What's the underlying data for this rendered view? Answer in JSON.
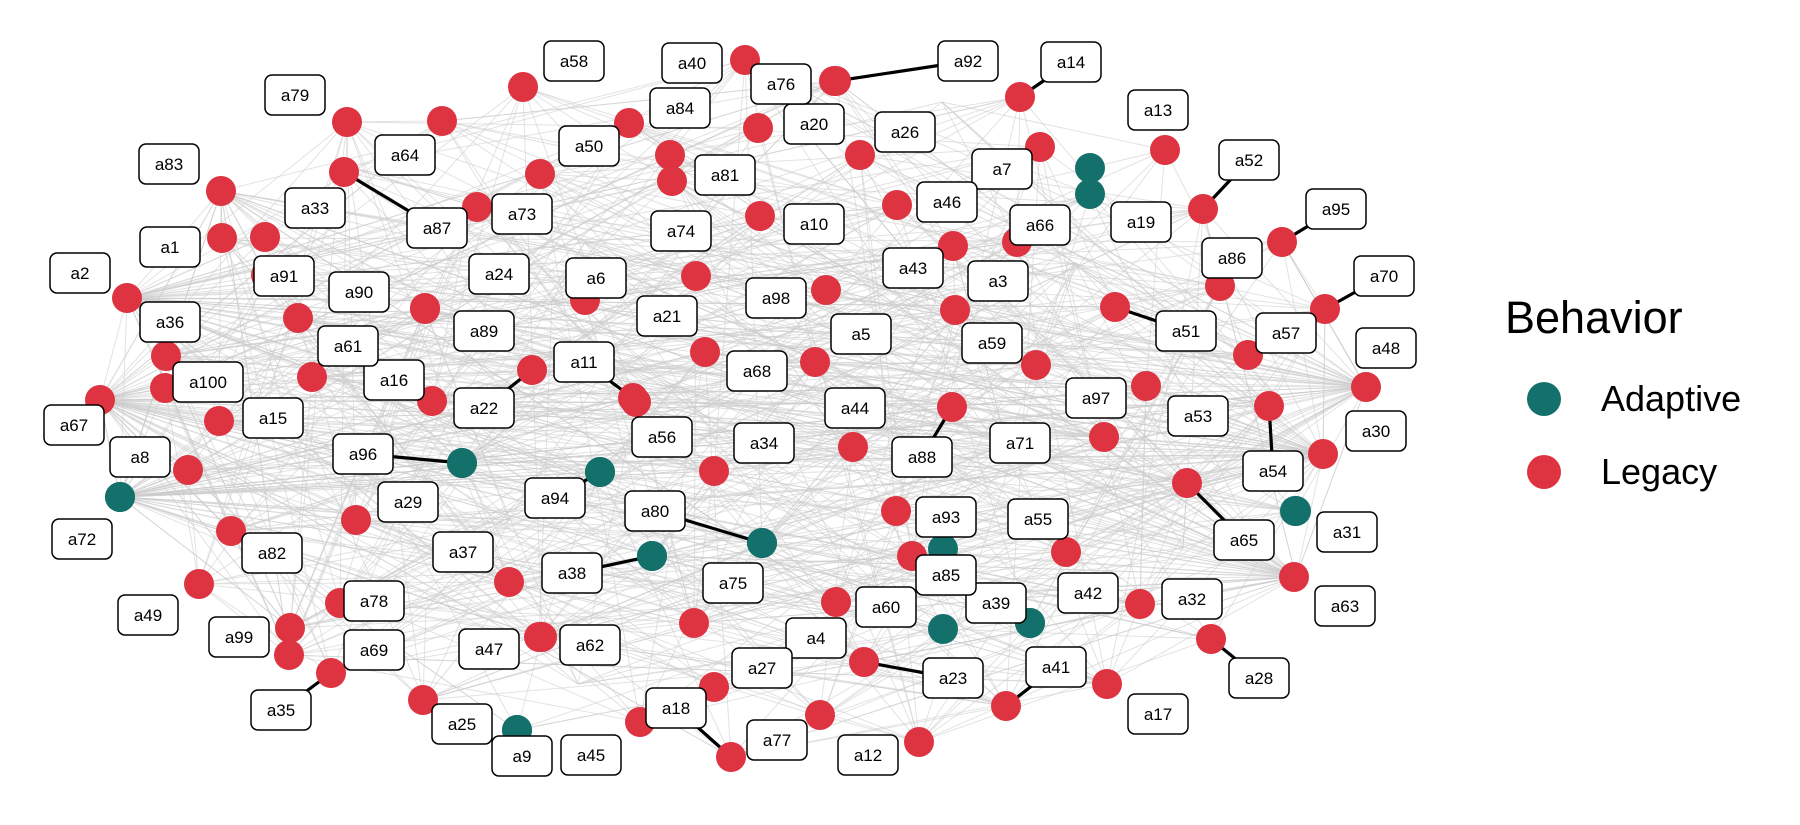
{
  "legend": {
    "title": "Behavior",
    "items": [
      {
        "label": "Adaptive",
        "color": "#13706b"
      },
      {
        "label": "Legacy",
        "color": "#de3341"
      }
    ]
  },
  "colors": {
    "edge": "#cccccc",
    "adaptive": "#13706b",
    "legacy": "#de3341"
  },
  "nodes": [
    {
      "label": "a1",
      "type": "Legacy"
    },
    {
      "label": "a2",
      "type": "Legacy"
    },
    {
      "label": "a3",
      "type": "Legacy"
    },
    {
      "label": "a4",
      "type": "Legacy"
    },
    {
      "label": "a5",
      "type": "Legacy"
    },
    {
      "label": "a6",
      "type": "Legacy"
    },
    {
      "label": "a7",
      "type": "Legacy"
    },
    {
      "label": "a8",
      "type": "Legacy"
    },
    {
      "label": "a9",
      "type": "Adaptive"
    },
    {
      "label": "a10",
      "type": "Legacy"
    },
    {
      "label": "a11",
      "type": "Legacy"
    },
    {
      "label": "a12",
      "type": "Legacy"
    },
    {
      "label": "a13",
      "type": "Legacy"
    },
    {
      "label": "a14",
      "type": "Legacy"
    },
    {
      "label": "a15",
      "type": "Legacy"
    },
    {
      "label": "a16",
      "type": "Legacy"
    },
    {
      "label": "a17",
      "type": "Legacy"
    },
    {
      "label": "a18",
      "type": "Legacy"
    },
    {
      "label": "a19",
      "type": "Adaptive"
    },
    {
      "label": "a20",
      "type": "Legacy"
    },
    {
      "label": "a21",
      "type": "Legacy"
    },
    {
      "label": "a22",
      "type": "Legacy"
    },
    {
      "label": "a23",
      "type": "Legacy"
    },
    {
      "label": "a24",
      "type": "Legacy"
    },
    {
      "label": "a25",
      "type": "Legacy"
    },
    {
      "label": "a26",
      "type": "Legacy"
    },
    {
      "label": "a27",
      "type": "Legacy"
    },
    {
      "label": "a28",
      "type": "Legacy"
    },
    {
      "label": "a29",
      "type": "Legacy"
    },
    {
      "label": "a30",
      "type": "Legacy"
    },
    {
      "label": "a31",
      "type": "Adaptive"
    },
    {
      "label": "a32",
      "type": "Legacy"
    },
    {
      "label": "a33",
      "type": "Legacy"
    },
    {
      "label": "a34",
      "type": "Legacy"
    },
    {
      "label": "a35",
      "type": "Legacy"
    },
    {
      "label": "a36",
      "type": "Legacy"
    },
    {
      "label": "a37",
      "type": "Legacy"
    },
    {
      "label": "a38",
      "type": "Adaptive"
    },
    {
      "label": "a39",
      "type": "Adaptive"
    },
    {
      "label": "a40",
      "type": "Legacy"
    },
    {
      "label": "a41",
      "type": "Legacy"
    },
    {
      "label": "a42",
      "type": "Legacy"
    },
    {
      "label": "a43",
      "type": "Legacy"
    },
    {
      "label": "a44",
      "type": "Legacy"
    },
    {
      "label": "a45",
      "type": "Legacy"
    },
    {
      "label": "a46",
      "type": "Legacy"
    },
    {
      "label": "a47",
      "type": "Legacy"
    },
    {
      "label": "a48",
      "type": "Legacy"
    },
    {
      "label": "a49",
      "type": "Legacy"
    },
    {
      "label": "a50",
      "type": "Legacy"
    },
    {
      "label": "a51",
      "type": "Legacy"
    },
    {
      "label": "a52",
      "type": "Legacy"
    },
    {
      "label": "a53",
      "type": "Legacy"
    },
    {
      "label": "a54",
      "type": "Legacy"
    },
    {
      "label": "a55",
      "type": "Legacy"
    },
    {
      "label": "a56",
      "type": "Legacy"
    },
    {
      "label": "a57",
      "type": "Legacy"
    },
    {
      "label": "a58",
      "type": "Legacy"
    },
    {
      "label": "a59",
      "type": "Legacy"
    },
    {
      "label": "a60",
      "type": "Adaptive"
    },
    {
      "label": "a61",
      "type": "Legacy"
    },
    {
      "label": "a62",
      "type": "Legacy"
    },
    {
      "label": "a63",
      "type": "Legacy"
    },
    {
      "label": "a64",
      "type": "Legacy"
    },
    {
      "label": "a65",
      "type": "Legacy"
    },
    {
      "label": "a66",
      "type": "Legacy"
    },
    {
      "label": "a67",
      "type": "Legacy"
    },
    {
      "label": "a68",
      "type": "Legacy"
    },
    {
      "label": "a69",
      "type": "Legacy"
    },
    {
      "label": "a70",
      "type": "Legacy"
    },
    {
      "label": "a71",
      "type": "Legacy"
    },
    {
      "label": "a72",
      "type": "Adaptive"
    },
    {
      "label": "a73",
      "type": "Legacy"
    },
    {
      "label": "a74",
      "type": "Legacy"
    },
    {
      "label": "a75",
      "type": "Legacy"
    },
    {
      "label": "a76",
      "type": "Legacy"
    },
    {
      "label": "a77",
      "type": "Legacy"
    },
    {
      "label": "a78",
      "type": "Legacy"
    },
    {
      "label": "a79",
      "type": "Legacy"
    },
    {
      "label": "a80",
      "type": "Adaptive"
    },
    {
      "label": "a81",
      "type": "Legacy"
    },
    {
      "label": "a82",
      "type": "Legacy"
    },
    {
      "label": "a83",
      "type": "Legacy"
    },
    {
      "label": "a84",
      "type": "Legacy"
    },
    {
      "label": "a85",
      "type": "Legacy"
    },
    {
      "label": "a86",
      "type": "Legacy"
    },
    {
      "label": "a87",
      "type": "Legacy"
    },
    {
      "label": "a88",
      "type": "Legacy"
    },
    {
      "label": "a89",
      "type": "Legacy"
    },
    {
      "label": "a90",
      "type": "Legacy"
    },
    {
      "label": "a91",
      "type": "Legacy"
    },
    {
      "label": "a92",
      "type": "Legacy"
    },
    {
      "label": "a93",
      "type": "Legacy"
    },
    {
      "label": "a94",
      "type": "Adaptive"
    },
    {
      "label": "a95",
      "type": "Legacy"
    },
    {
      "label": "a96",
      "type": "Adaptive"
    },
    {
      "label": "a97",
      "type": "Legacy"
    },
    {
      "label": "a98",
      "type": "Legacy"
    },
    {
      "label": "a99",
      "type": "Legacy"
    },
    {
      "label": "a100",
      "type": "Legacy"
    }
  ]
}
